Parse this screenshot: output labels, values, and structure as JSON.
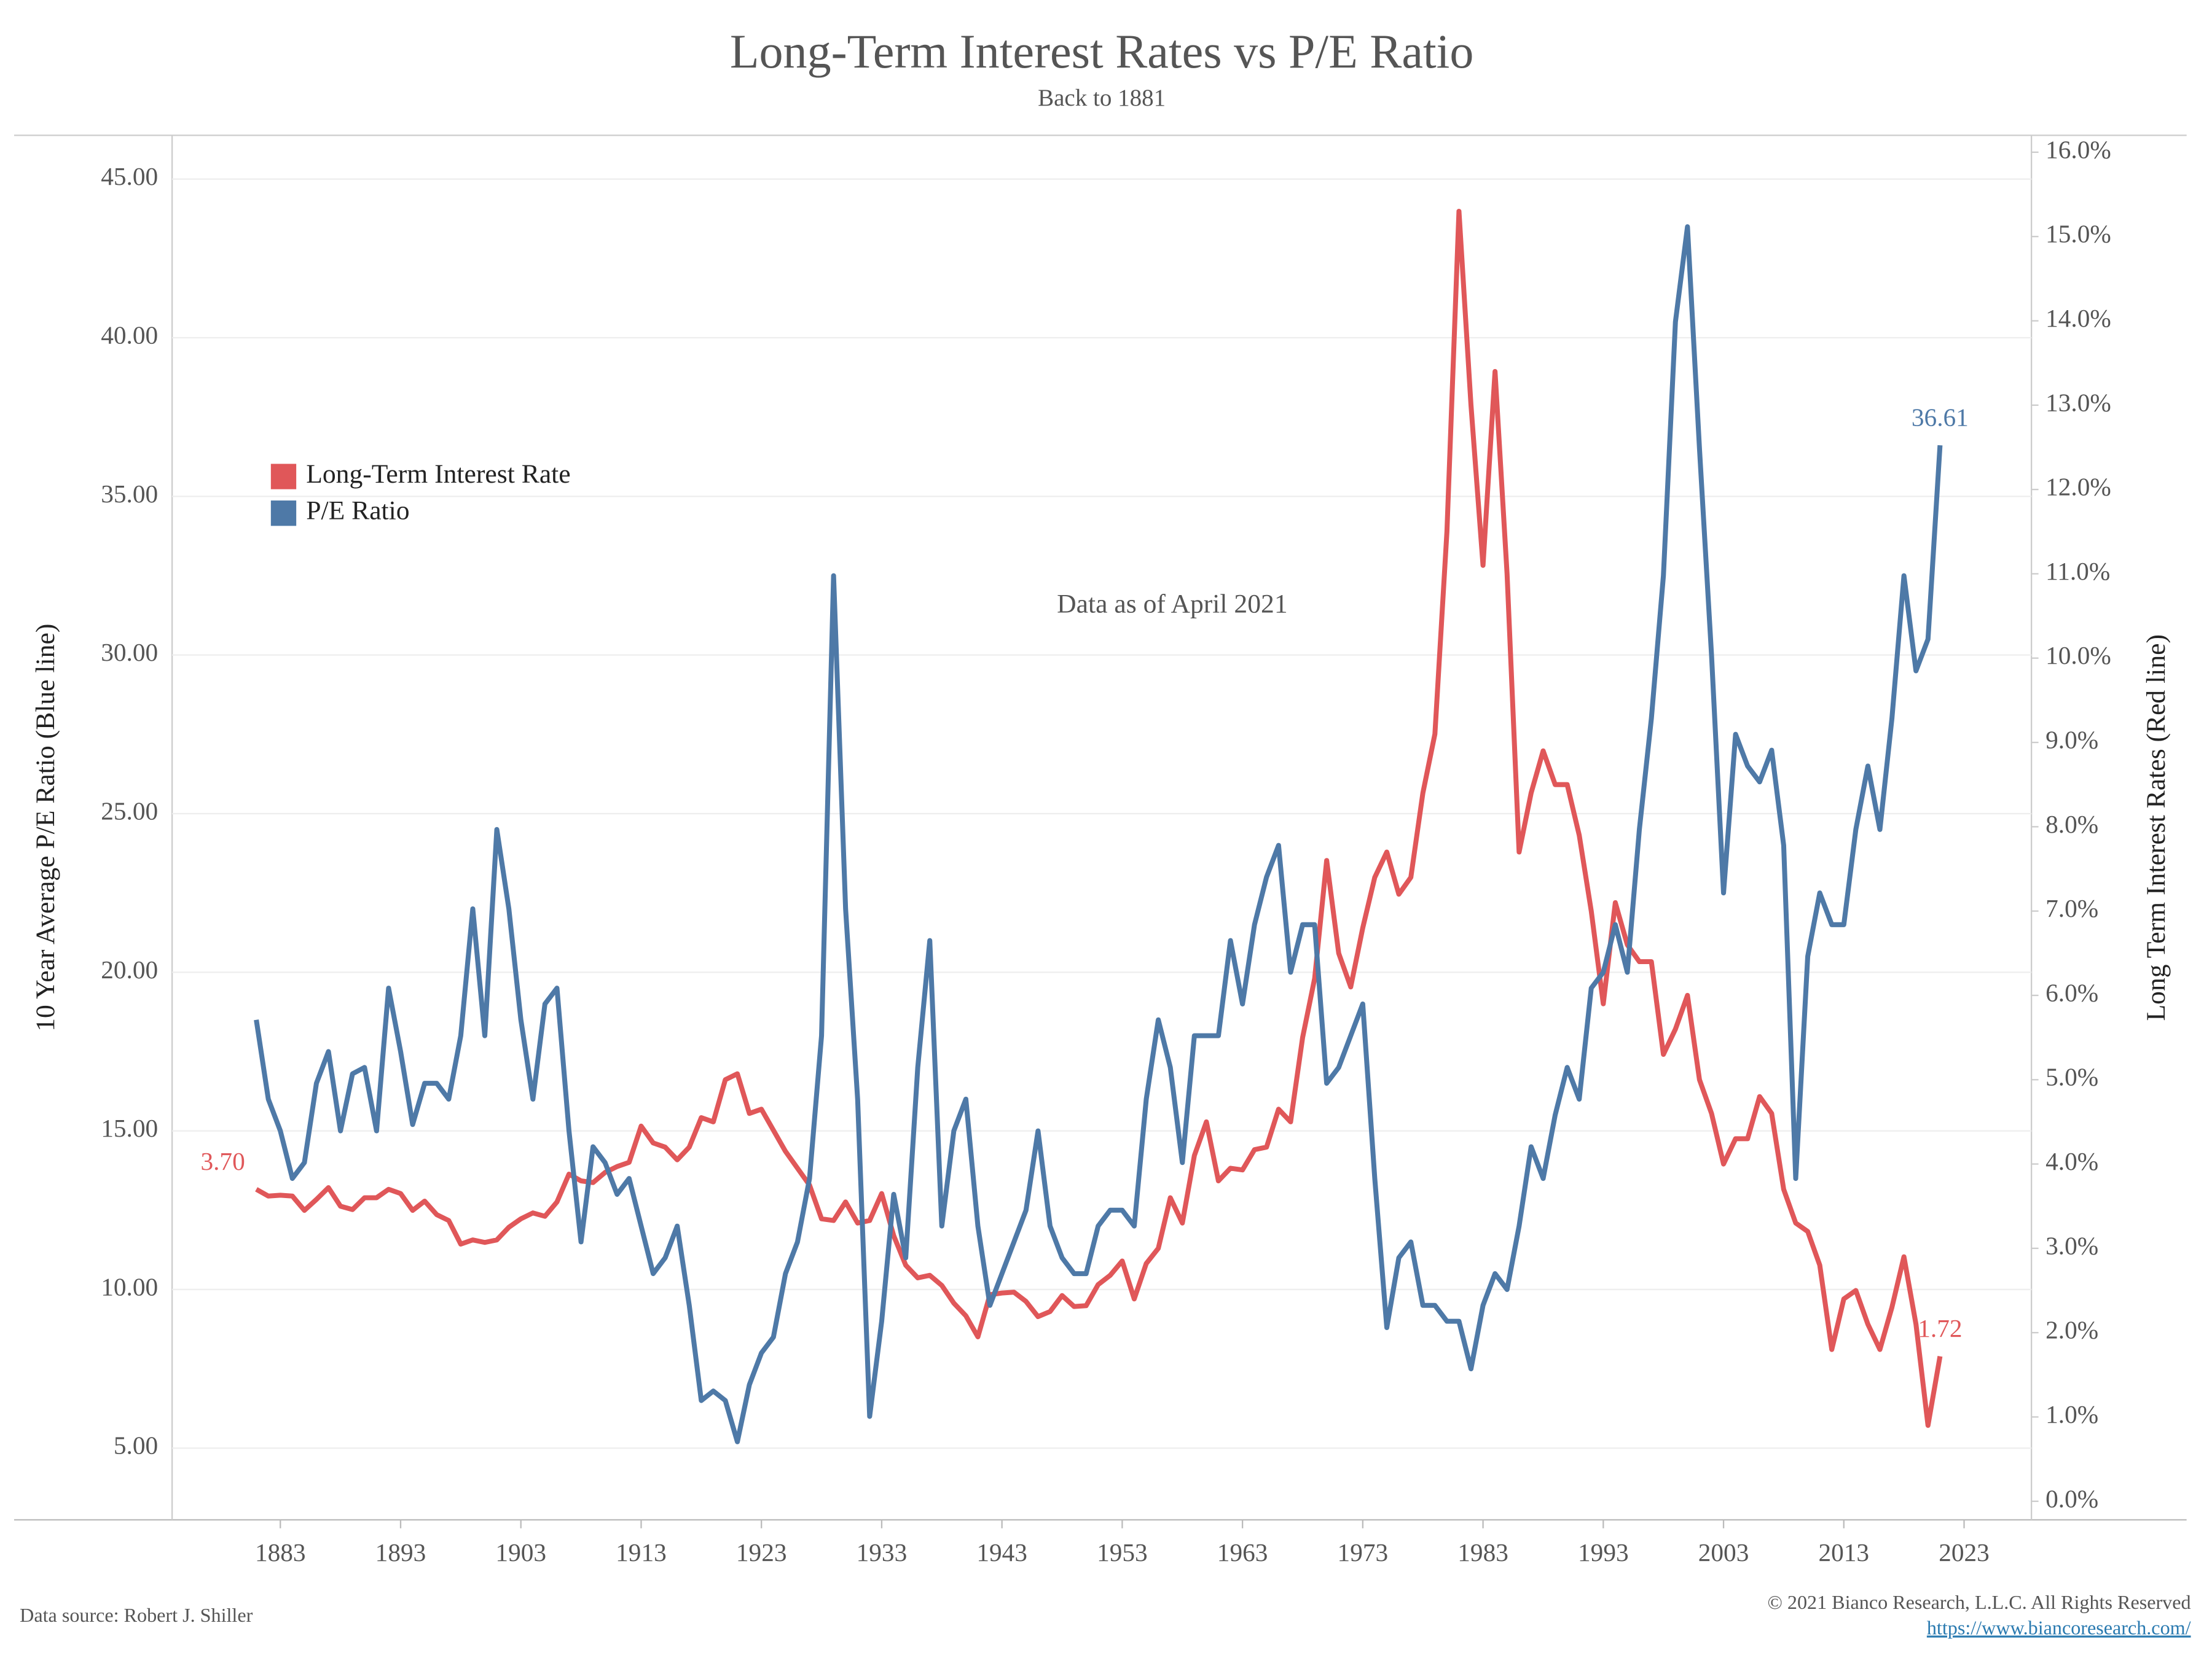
{
  "chart_data": {
    "type": "line",
    "title": "Long-Term Interest Rates vs P/E Ratio",
    "subtitle": "Back to 1881",
    "annotation": "Data as of April 2021",
    "y_label": "10 Year Average P/E Ratio (Blue line)",
    "y2_label": "Long Term Interest Rates (Red line)",
    "source": "Data source: Robert J. Shiller",
    "copyright": "© 2021 Bianco Research, L.L.C. All Rights Reserved",
    "url": "https://www.biancoresearch.com/",
    "legend": "upper left",
    "grid": true,
    "x": [
      1881,
      1882,
      1883,
      1884,
      1885,
      1886,
      1887,
      1888,
      1889,
      1890,
      1891,
      1892,
      1893,
      1894,
      1895,
      1896,
      1897,
      1898,
      1899,
      1900,
      1901,
      1902,
      1903,
      1904,
      1905,
      1906,
      1907,
      1908,
      1909,
      1910,
      1911,
      1912,
      1913,
      1914,
      1915,
      1916,
      1917,
      1918,
      1919,
      1920,
      1921,
      1922,
      1923,
      1924,
      1925,
      1926,
      1927,
      1928,
      1929,
      1930,
      1931,
      1932,
      1933,
      1934,
      1935,
      1936,
      1937,
      1938,
      1939,
      1940,
      1941,
      1942,
      1943,
      1944,
      1945,
      1946,
      1947,
      1948,
      1949,
      1950,
      1951,
      1952,
      1953,
      1954,
      1955,
      1956,
      1957,
      1958,
      1959,
      1960,
      1961,
      1962,
      1963,
      1964,
      1965,
      1966,
      1967,
      1968,
      1969,
      1970,
      1971,
      1972,
      1973,
      1974,
      1975,
      1976,
      1977,
      1978,
      1979,
      1980,
      1981,
      1982,
      1983,
      1984,
      1985,
      1986,
      1987,
      1988,
      1989,
      1990,
      1991,
      1992,
      1993,
      1994,
      1995,
      1996,
      1997,
      1998,
      1999,
      2000,
      2001,
      2002,
      2003,
      2004,
      2005,
      2006,
      2007,
      2008,
      2009,
      2010,
      2011,
      2012,
      2013,
      2014,
      2015,
      2016,
      2017,
      2018,
      2019,
      2020,
      2021
    ],
    "xlim": [
      1874,
      2028.6
    ],
    "xticks": [
      1883,
      1893,
      1903,
      1913,
      1923,
      1933,
      1943,
      1953,
      1963,
      1973,
      1983,
      1993,
      2003,
      2013,
      2023
    ],
    "ylim": [
      2.74,
      46.38
    ],
    "yticks": [
      {
        "value": 5,
        "label": "5.00"
      },
      {
        "value": 10,
        "label": "10.00"
      },
      {
        "value": 15,
        "label": "15.00"
      },
      {
        "value": 20,
        "label": "20.00"
      },
      {
        "value": 25,
        "label": "25.00"
      },
      {
        "value": 30,
        "label": "30.00"
      },
      {
        "value": 35,
        "label": "35.00"
      },
      {
        "value": 40,
        "label": "40.00"
      },
      {
        "value": 45,
        "label": "45.00"
      }
    ],
    "y2lim": [
      -0.22,
      16.2
    ],
    "y2ticks": [
      {
        "value": 0,
        "label": "0.0%"
      },
      {
        "value": 1,
        "label": "1.0%"
      },
      {
        "value": 2,
        "label": "2.0%"
      },
      {
        "value": 3,
        "label": "3.0%"
      },
      {
        "value": 4,
        "label": "4.0%"
      },
      {
        "value": 5,
        "label": "5.0%"
      },
      {
        "value": 6,
        "label": "6.0%"
      },
      {
        "value": 7,
        "label": "7.0%"
      },
      {
        "value": 8,
        "label": "8.0%"
      },
      {
        "value": 9,
        "label": "9.0%"
      },
      {
        "value": 10,
        "label": "10.0%"
      },
      {
        "value": 11,
        "label": "11.0%"
      },
      {
        "value": 12,
        "label": "12.0%"
      },
      {
        "value": 13,
        "label": "13.0%"
      },
      {
        "value": 14,
        "label": "14.0%"
      },
      {
        "value": 15,
        "label": "15.0%"
      },
      {
        "value": 16,
        "label": "16.0%"
      }
    ],
    "series": [
      {
        "name": "Long-Term Interest Rate",
        "color": "#e05759",
        "axis": "y2",
        "values": [
          3.7,
          3.62,
          3.63,
          3.62,
          3.45,
          3.58,
          3.72,
          3.5,
          3.46,
          3.6,
          3.6,
          3.7,
          3.65,
          3.45,
          3.56,
          3.4,
          3.33,
          3.05,
          3.1,
          3.07,
          3.1,
          3.25,
          3.35,
          3.42,
          3.38,
          3.55,
          3.88,
          3.8,
          3.78,
          3.9,
          3.97,
          4.02,
          4.45,
          4.25,
          4.2,
          4.05,
          4.2,
          4.55,
          4.5,
          5.0,
          5.07,
          4.6,
          4.65,
          4.4,
          4.15,
          3.95,
          3.75,
          3.35,
          3.33,
          3.55,
          3.3,
          3.33,
          3.65,
          3.15,
          2.8,
          2.65,
          2.68,
          2.56,
          2.35,
          2.2,
          1.95,
          2.45,
          2.47,
          2.48,
          2.37,
          2.19,
          2.25,
          2.44,
          2.31,
          2.32,
          2.57,
          2.68,
          2.85,
          2.4,
          2.82,
          3.0,
          3.6,
          3.3,
          4.1,
          4.5,
          3.8,
          3.95,
          3.93,
          4.17,
          4.2,
          4.65,
          4.5,
          5.5,
          6.2,
          7.6,
          6.5,
          6.1,
          6.8,
          7.4,
          7.7,
          7.2,
          7.4,
          8.4,
          9.1,
          11.5,
          15.3,
          13.0,
          11.1,
          13.4,
          11.0,
          7.7,
          8.4,
          8.9,
          8.5,
          8.5,
          7.9,
          7.0,
          5.9,
          7.1,
          6.6,
          6.4,
          6.4,
          5.3,
          5.6,
          6.0,
          5.0,
          4.6,
          4.0,
          4.3,
          4.3,
          4.8,
          4.6,
          3.7,
          3.3,
          3.2,
          2.8,
          1.8,
          2.4,
          2.5,
          2.1,
          1.8,
          2.3,
          2.9,
          2.1,
          0.9,
          1.72
        ],
        "value_labels": [
          "3.70",
          null,
          null,
          null,
          null,
          null,
          null,
          null,
          null,
          null,
          null,
          null,
          null,
          null,
          null,
          null,
          null,
          null,
          null,
          null,
          null,
          null,
          null,
          null,
          null,
          null,
          null,
          null,
          null,
          null,
          null,
          null,
          null,
          null,
          null,
          null,
          null,
          null,
          null,
          null,
          null,
          null,
          null,
          null,
          null,
          null,
          null,
          null,
          null,
          null,
          null,
          null,
          null,
          null,
          null,
          null,
          null,
          null,
          null,
          null,
          null,
          null,
          null,
          null,
          null,
          null,
          null,
          null,
          null,
          null,
          null,
          null,
          null,
          null,
          null,
          null,
          null,
          null,
          null,
          null,
          null,
          null,
          null,
          null,
          null,
          null,
          null,
          null,
          null,
          null,
          null,
          null,
          null,
          null,
          null,
          null,
          null,
          null,
          null,
          null,
          null,
          null,
          null,
          null,
          null,
          null,
          null,
          null,
          null,
          null,
          null,
          null,
          null,
          null,
          null,
          null,
          null,
          null,
          null,
          null,
          null,
          null,
          null,
          null,
          null,
          null,
          null,
          null,
          null,
          null,
          null,
          null,
          null,
          null,
          null,
          null,
          null,
          null,
          null,
          null,
          "1.72"
        ]
      },
      {
        "name": "P/E Ratio",
        "color": "#4e79a7",
        "values": [
          18.5,
          16.0,
          15.0,
          13.5,
          14.0,
          16.5,
          17.5,
          15.0,
          16.8,
          17.0,
          15.0,
          19.5,
          17.5,
          15.2,
          16.5,
          16.5,
          16.0,
          18.0,
          22.0,
          18.0,
          24.5,
          22.0,
          18.5,
          16.0,
          19.0,
          19.5,
          15.0,
          11.5,
          14.5,
          14.0,
          13.0,
          13.5,
          12.0,
          10.5,
          11.0,
          12.0,
          9.5,
          6.5,
          6.8,
          6.5,
          5.2,
          7.0,
          8.0,
          8.5,
          10.5,
          11.5,
          13.5,
          18.0,
          32.5,
          22.0,
          16.0,
          6.0,
          9.0,
          13.0,
          11.0,
          17.0,
          21.0,
          12.0,
          15.0,
          16.0,
          12.0,
          9.5,
          10.5,
          11.5,
          12.5,
          15.0,
          12.0,
          11.0,
          10.5,
          10.5,
          12.0,
          12.5,
          12.5,
          12.0,
          16.0,
          18.5,
          17.0,
          14.0,
          18.0,
          18.0,
          18.0,
          21.0,
          19.0,
          21.5,
          23.0,
          24.0,
          20.0,
          21.5,
          21.5,
          16.5,
          17.0,
          18.0,
          19.0,
          13.5,
          8.8,
          11.0,
          11.5,
          9.5,
          9.5,
          9.0,
          9.0,
          7.5,
          9.5,
          10.5,
          10.0,
          12.0,
          14.5,
          13.5,
          15.5,
          17.0,
          16.0,
          19.5,
          20.0,
          21.5,
          20.0,
          24.5,
          28.0,
          32.5,
          40.5,
          43.5,
          36.5,
          30.0,
          22.5,
          27.5,
          26.5,
          26.0,
          27.0,
          24.0,
          13.5,
          20.5,
          22.5,
          21.5,
          21.5,
          24.5,
          26.5,
          24.5,
          28.0,
          32.5,
          29.5,
          30.5,
          36.61
        ],
        "value_labels": [
          null,
          null,
          null,
          null,
          null,
          null,
          null,
          null,
          null,
          null,
          null,
          null,
          null,
          null,
          null,
          null,
          null,
          null,
          null,
          null,
          null,
          null,
          null,
          null,
          null,
          null,
          null,
          null,
          null,
          null,
          null,
          null,
          null,
          null,
          null,
          null,
          null,
          null,
          null,
          null,
          null,
          null,
          null,
          null,
          null,
          null,
          null,
          null,
          null,
          null,
          null,
          null,
          null,
          null,
          null,
          null,
          null,
          null,
          null,
          null,
          null,
          null,
          null,
          null,
          null,
          null,
          null,
          null,
          null,
          null,
          null,
          null,
          null,
          null,
          null,
          null,
          null,
          null,
          null,
          null,
          null,
          null,
          null,
          null,
          null,
          null,
          null,
          null,
          null,
          null,
          null,
          null,
          null,
          null,
          null,
          null,
          null,
          null,
          null,
          null,
          null,
          null,
          null,
          null,
          null,
          null,
          null,
          null,
          null,
          null,
          null,
          null,
          null,
          null,
          null,
          null,
          null,
          null,
          null,
          null,
          null,
          null,
          null,
          null,
          null,
          null,
          null,
          null,
          null,
          null,
          null,
          null,
          null,
          null,
          null,
          null,
          null,
          null,
          null,
          null,
          "36.61"
        ]
      }
    ]
  }
}
